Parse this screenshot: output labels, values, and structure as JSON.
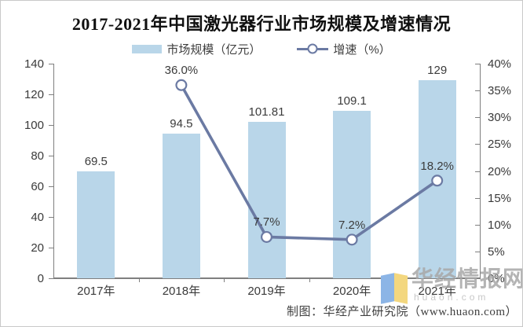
{
  "title": "2017-2021年中国激光器行业市场规模及增速情况",
  "legend": [
    {
      "label": "市场规模（亿元）",
      "type": "bar",
      "color": "#b9d6e9"
    },
    {
      "label": "增速（%）",
      "type": "line",
      "color": "#6b7aa3"
    }
  ],
  "footer": {
    "source": "制图：华经产业研究院（www.huaon.com）"
  },
  "watermark": {
    "brand": "华经情报网",
    "url": "huaon.com"
  },
  "chart_data": {
    "type": "combo",
    "title": "2017-2021年中国激光器行业市场规模及增速情况",
    "categories": [
      "2017年",
      "2018年",
      "2019年",
      "2020年",
      "2021年"
    ],
    "series": [
      {
        "name": "市场规模（亿元）",
        "type": "bar",
        "axis": "left",
        "values": [
          69.5,
          94.5,
          101.81,
          109.1,
          129
        ],
        "labels": [
          "69.5",
          "94.5",
          "101.81",
          "109.1",
          "129"
        ],
        "color": "#b9d6e9"
      },
      {
        "name": "增速（%）",
        "type": "line",
        "axis": "right",
        "values": [
          null,
          36.0,
          7.7,
          7.2,
          18.2
        ],
        "labels": [
          null,
          "36.0%",
          "7.7%",
          "7.2%",
          "18.2%"
        ],
        "color": "#6b7aa3",
        "marker": "circle-white"
      }
    ],
    "left_axis": {
      "min": 0,
      "max": 140,
      "step": 20,
      "tick_labels": [
        "0",
        "20",
        "40",
        "60",
        "80",
        "100",
        "120",
        "140"
      ]
    },
    "right_axis": {
      "min": 0,
      "max": 40,
      "step": 5,
      "tick_labels": [
        "0%",
        "5%",
        "10%",
        "15%",
        "20%",
        "25%",
        "30%",
        "35%",
        "40%"
      ]
    },
    "grid": false,
    "legend_position": "top",
    "axis_color": "#7f7f7f"
  }
}
